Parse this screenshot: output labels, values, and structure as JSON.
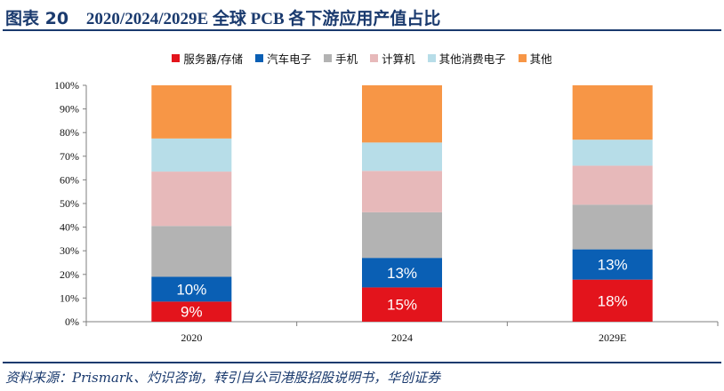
{
  "figure": {
    "label": "图表 20",
    "title": "2020/2024/2029E 全球 PCB 各下游应用产值占比",
    "source": "资料来源：Prismark、灼识咨询，转引自公司港股招股说明书，华创证券"
  },
  "chart_data": {
    "type": "bar",
    "stacked": true,
    "categories": [
      "2020",
      "2024",
      "2029E"
    ],
    "ylim": [
      0,
      100
    ],
    "yticks": [
      "0%",
      "10%",
      "20%",
      "30%",
      "40%",
      "50%",
      "60%",
      "70%",
      "80%",
      "90%",
      "100%"
    ],
    "legend_position": "top-center",
    "grid": false,
    "series": [
      {
        "name": "服务器/存储",
        "color": "#e3141c",
        "values": [
          8.5,
          14.5,
          17.8
        ],
        "labels": [
          "9%",
          "15%",
          "18%"
        ]
      },
      {
        "name": "汽车电子",
        "color": "#0a5fb4",
        "values": [
          10.5,
          12.5,
          12.8
        ],
        "labels": [
          "10%",
          "13%",
          "13%"
        ]
      },
      {
        "name": "手机",
        "color": "#b3b3b3",
        "values": [
          21.5,
          19.3,
          18.9
        ],
        "labels": [
          "",
          "",
          ""
        ]
      },
      {
        "name": "计算机",
        "color": "#e7b9ba",
        "values": [
          23,
          17.5,
          16.5
        ],
        "labels": [
          "",
          "",
          ""
        ]
      },
      {
        "name": "其他消费电子",
        "color": "#b7dde8",
        "values": [
          14,
          12,
          11
        ],
        "labels": [
          "",
          "",
          ""
        ]
      },
      {
        "name": "其他",
        "color": "#f79646",
        "values": [
          22.5,
          24.2,
          23
        ],
        "labels": [
          "",
          "",
          ""
        ]
      }
    ]
  }
}
